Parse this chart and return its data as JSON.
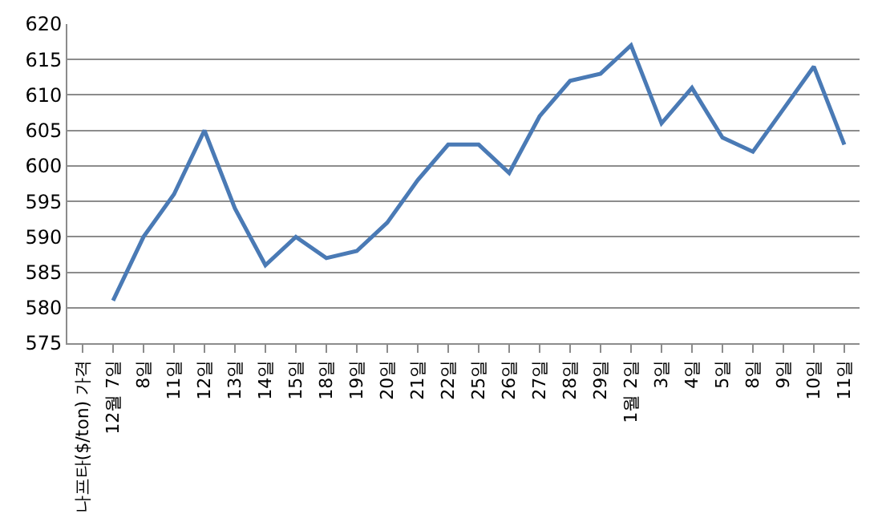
{
  "chart_data": {
    "type": "line",
    "categories": [
      "나프타($/ton) 가격",
      "12월 7일",
      "8일",
      "11일",
      "12일",
      "13일",
      "14일",
      "15일",
      "18일",
      "19일",
      "20일",
      "21일",
      "22일",
      "25일",
      "26일",
      "27일",
      "28일",
      "29일",
      "1월 2일",
      "3일",
      "4일",
      "5일",
      "8일",
      "9일",
      "10일",
      "11일"
    ],
    "series": [
      {
        "color": "#4a7ab5",
        "values": [
          null,
          581,
          590,
          596,
          605,
          594,
          586,
          590,
          587,
          588,
          592,
          598,
          603,
          603,
          599,
          607,
          612,
          613,
          617,
          606,
          611,
          604,
          602,
          608,
          614,
          603
        ]
      }
    ],
    "ylim": [
      575,
      620
    ],
    "yticks": [
      575,
      580,
      585,
      590,
      595,
      600,
      605,
      610,
      615,
      620
    ],
    "grid": "y",
    "marker": "none",
    "line_style": "solid"
  }
}
